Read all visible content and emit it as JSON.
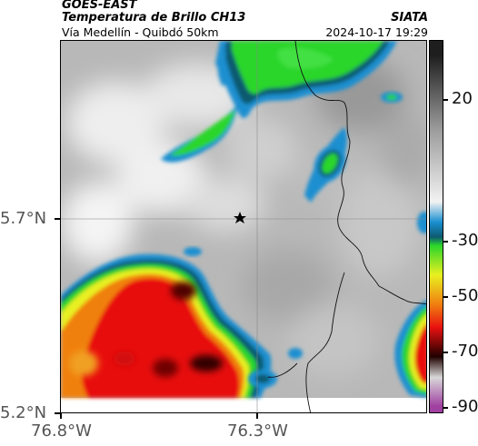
{
  "header": {
    "satellite": "GOES-EAST",
    "product": "Temperatura de Brillo CH13",
    "route": "Vía Medellín - Quibdó 50km",
    "brand": "SIATA",
    "datetime": "2024-10-17 19:29"
  },
  "map": {
    "lat_labels": [
      "5.7°N",
      "5.2°N"
    ],
    "lon_labels": [
      "76.8°W",
      "76.3°W"
    ],
    "marker": "star-icon"
  },
  "colorbar": {
    "labels": [
      "20",
      "-30",
      "-50",
      "-70",
      "-90"
    ],
    "stops": [
      {
        "value": 30,
        "color": "#1e1e1e"
      },
      {
        "value": 5,
        "color": "#9a9a9a"
      },
      {
        "value": -20,
        "color": "#f2f2f2"
      },
      {
        "value": -27,
        "color": "#1a8fd0"
      },
      {
        "value": -32,
        "color": "#0d5a70"
      },
      {
        "value": -35,
        "color": "#2bd62b"
      },
      {
        "value": -45,
        "color": "#e8f020"
      },
      {
        "value": -55,
        "color": "#f08010"
      },
      {
        "value": -63,
        "color": "#e81010"
      },
      {
        "value": -73,
        "color": "#200000"
      },
      {
        "value": -80,
        "color": "#d8d8d8"
      },
      {
        "value": -90,
        "color": "#a040a0"
      }
    ]
  }
}
